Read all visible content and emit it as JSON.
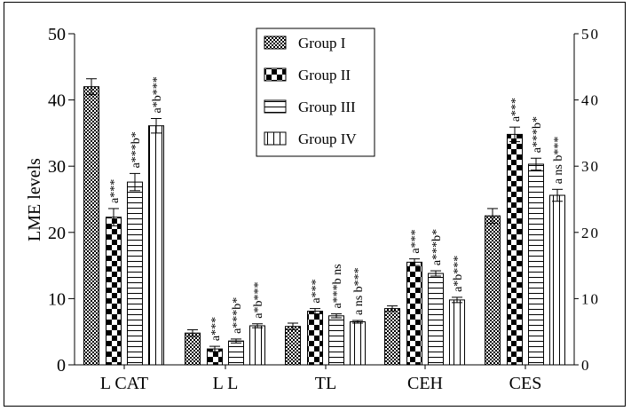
{
  "chart_data": {
    "type": "bar",
    "title": "",
    "xlabel": "",
    "ylabel": "LME levels",
    "ylim": [
      0,
      50
    ],
    "yticks": [
      0,
      10,
      20,
      30,
      40,
      50
    ],
    "right_axis_ticks": [
      0,
      10,
      20,
      30,
      40,
      50
    ],
    "grid": false,
    "legend_position": "top-center",
    "categories": [
      "LCAT",
      "LL",
      "TL",
      "CEH",
      "CES"
    ],
    "category_labels": [
      "L CAT",
      "L L",
      "TL",
      "CEH",
      "CES"
    ],
    "series": [
      {
        "name": "Group I",
        "pattern": "fine-checker",
        "values": [
          42.0,
          4.8,
          5.8,
          8.5,
          22.5
        ],
        "errors": [
          1.2,
          0.5,
          0.5,
          0.4,
          1.1
        ],
        "annotations": [
          "",
          "",
          "",
          "",
          ""
        ]
      },
      {
        "name": "Group II",
        "pattern": "coarse-checker",
        "values": [
          22.3,
          2.4,
          8.1,
          15.5,
          34.8
        ],
        "errors": [
          1.3,
          0.4,
          0.4,
          0.5,
          1.1
        ],
        "annotations": [
          "a***",
          "a***",
          "a***",
          "a***",
          "a***"
        ]
      },
      {
        "name": "Group III",
        "pattern": "horizontal-lines",
        "values": [
          27.6,
          3.6,
          7.4,
          13.8,
          30.3
        ],
        "errors": [
          1.3,
          0.3,
          0.3,
          0.4,
          0.9
        ],
        "annotations": [
          "a***b*",
          "a***b*",
          "a***b ns",
          "a***b*",
          "a***b*"
        ]
      },
      {
        "name": "Group IV",
        "pattern": "vertical-lines",
        "values": [
          36.1,
          5.9,
          6.5,
          9.8,
          25.6
        ],
        "errors": [
          1.1,
          0.3,
          0.2,
          0.4,
          0.9
        ],
        "annotations": [
          "a*b***",
          "a*b***",
          "a ns b***",
          "a*b***",
          "a ns b***"
        ]
      }
    ]
  }
}
